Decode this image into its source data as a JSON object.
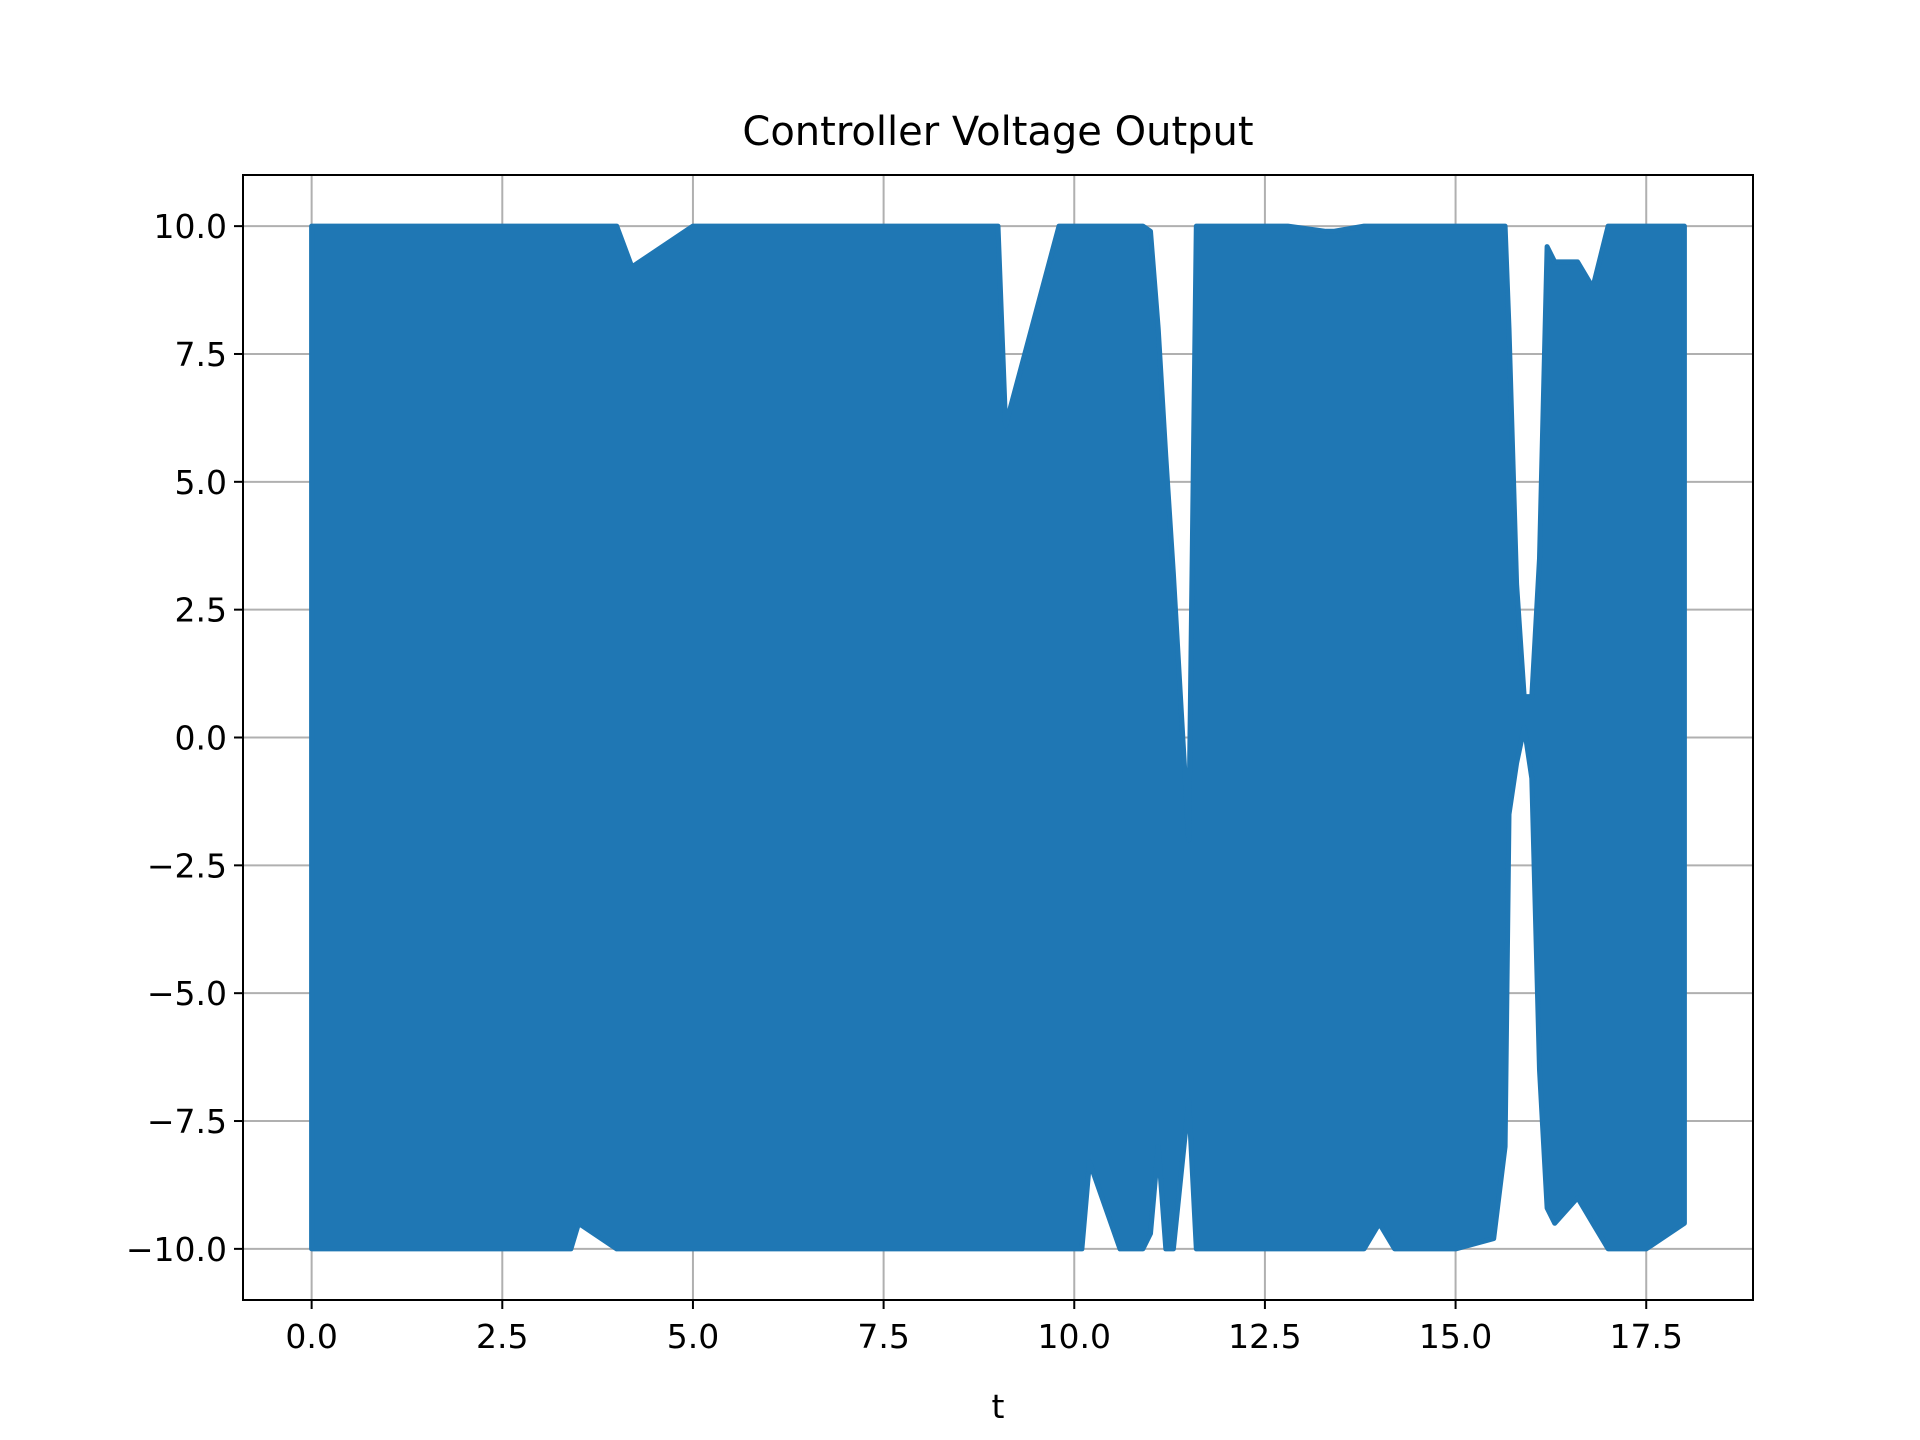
{
  "chart_data": {
    "type": "line",
    "title": "Controller Voltage Output",
    "xlabel": "t",
    "ylabel": "",
    "xlim": [
      -0.9,
      18.9
    ],
    "ylim": [
      -11,
      11
    ],
    "x_ticks": [
      0.0,
      2.5,
      5.0,
      7.5,
      10.0,
      12.5,
      15.0,
      17.5
    ],
    "x_tick_labels": [
      "0.0",
      "2.5",
      "5.0",
      "7.5",
      "10.0",
      "12.5",
      "15.0",
      "17.5"
    ],
    "y_ticks": [
      10.0,
      7.5,
      5.0,
      2.5,
      0.0,
      -2.5,
      -5.0,
      -7.5,
      -10.0
    ],
    "y_tick_labels": [
      "10.0",
      "7.5",
      "5.0",
      "2.5",
      "0.0",
      "−2.5",
      "−5.0",
      "−7.5",
      "−10.0"
    ],
    "grid": true,
    "line_color": "#1f77b4",
    "series": [
      {
        "x": [
          0.0,
          1.0,
          2.0,
          3.0,
          3.4,
          3.5,
          4.0,
          4.2,
          5.0,
          5.6,
          6.5,
          7.2,
          7.4,
          8.0,
          9.0,
          9.1,
          9.8,
          10.1,
          10.2,
          10.6,
          10.9,
          11.0,
          11.1,
          11.2,
          11.3,
          11.5,
          11.6,
          12.0,
          12.8,
          13.3,
          13.4,
          13.8,
          14.0,
          14.2,
          14.5,
          15.0,
          15.5,
          15.65,
          15.7,
          15.8,
          15.9,
          16.0,
          16.1,
          16.2,
          16.3,
          16.6,
          16.8,
          17.0,
          17.5,
          18.0
        ],
        "y_max": [
          10.0,
          10.0,
          10.0,
          10.0,
          10.0,
          10.0,
          10.0,
          9.2,
          10.0,
          10.0,
          10.0,
          10.0,
          10.0,
          10.0,
          10.0,
          6.1,
          10.0,
          10.0,
          10.0,
          10.0,
          10.0,
          9.9,
          8.0,
          5.5,
          3.2,
          -2.0,
          10.0,
          10.0,
          10.0,
          9.9,
          9.9,
          10.0,
          10.0,
          10.0,
          10.0,
          10.0,
          10.0,
          10.0,
          8.0,
          3.0,
          0.8,
          0.8,
          3.5,
          9.6,
          9.3,
          9.3,
          8.8,
          10.0,
          10.0,
          10.0
        ],
        "y_min": [
          -10.0,
          -10.0,
          -10.0,
          -10.0,
          -10.0,
          -9.5,
          -10.0,
          -10.0,
          -10.0,
          -10.0,
          -10.0,
          -10.0,
          -10.0,
          -10.0,
          -10.0,
          -10.0,
          -10.0,
          -10.0,
          -8.3,
          -10.0,
          -10.0,
          -9.7,
          -8.0,
          -10.0,
          -10.0,
          -7.1,
          -10.0,
          -10.0,
          -10.0,
          -10.0,
          -10.0,
          -10.0,
          -9.5,
          -10.0,
          -10.0,
          -10.0,
          -9.8,
          -8.0,
          -1.5,
          -0.5,
          0.2,
          -0.8,
          -6.5,
          -9.2,
          -9.5,
          -9.0,
          -9.5,
          -10.0,
          -10.0,
          -9.5
        ]
      }
    ]
  }
}
